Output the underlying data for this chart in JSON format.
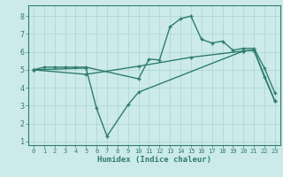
{
  "xlabel": "Humidex (Indice chaleur)",
  "bg_color": "#cceaea",
  "line_color": "#2e7d6e",
  "grid_color": "#aad4d4",
  "xlim": [
    -0.5,
    23.5
  ],
  "ylim": [
    0.8,
    8.6
  ],
  "yticks": [
    1,
    2,
    3,
    4,
    5,
    6,
    7,
    8
  ],
  "xticks": [
    0,
    1,
    2,
    3,
    4,
    5,
    6,
    7,
    8,
    9,
    10,
    11,
    12,
    13,
    14,
    15,
    16,
    17,
    18,
    19,
    20,
    21,
    22,
    23
  ],
  "line1_x": [
    0,
    1,
    2,
    3,
    4,
    5,
    10,
    11,
    12,
    13,
    14,
    15,
    16,
    17,
    18,
    19,
    20,
    21,
    22,
    23
  ],
  "line1_y": [
    5.0,
    5.15,
    5.15,
    5.15,
    5.15,
    5.15,
    4.5,
    5.6,
    5.55,
    7.4,
    7.85,
    8.0,
    6.7,
    6.5,
    6.6,
    6.1,
    6.2,
    6.2,
    5.1,
    3.7
  ],
  "line2_x": [
    0,
    5,
    6,
    7,
    9,
    10,
    20,
    21,
    22,
    23
  ],
  "line2_y": [
    5.0,
    5.1,
    2.85,
    1.3,
    3.05,
    3.75,
    6.05,
    6.1,
    4.6,
    3.25
  ],
  "line3_x": [
    0,
    5,
    10,
    15,
    20,
    21,
    23
  ],
  "line3_y": [
    5.0,
    4.75,
    5.2,
    5.7,
    6.05,
    6.1,
    3.25
  ],
  "marker": "+",
  "markersize": 3.5,
  "linewidth": 1.0
}
